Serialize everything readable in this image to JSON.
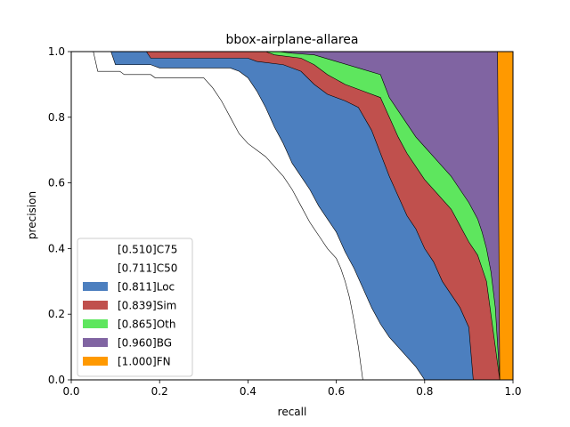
{
  "chart_data": {
    "type": "area",
    "title": "bbox-airplane-allarea",
    "xlabel": "recall",
    "ylabel": "precision",
    "xlim": [
      0,
      1
    ],
    "ylim": [
      0,
      1
    ],
    "xticks": [
      "0.0",
      "0.2",
      "0.4",
      "0.6",
      "0.8",
      "1.0"
    ],
    "yticks": [
      "0.0",
      "0.2",
      "0.4",
      "0.6",
      "0.8",
      "1.0"
    ],
    "grid": false,
    "legend_position": "lower-left",
    "series": [
      {
        "name": "[0.510]C75",
        "color": "#ffffff",
        "points": [
          [
            0.0,
            1.0
          ],
          [
            0.05,
            1.0
          ],
          [
            0.06,
            0.94
          ],
          [
            0.11,
            0.94
          ],
          [
            0.12,
            0.93
          ],
          [
            0.18,
            0.93
          ],
          [
            0.19,
            0.92
          ],
          [
            0.3,
            0.92
          ],
          [
            0.32,
            0.89
          ],
          [
            0.34,
            0.85
          ],
          [
            0.36,
            0.8
          ],
          [
            0.38,
            0.75
          ],
          [
            0.4,
            0.72
          ],
          [
            0.42,
            0.7
          ],
          [
            0.44,
            0.68
          ],
          [
            0.46,
            0.65
          ],
          [
            0.48,
            0.62
          ],
          [
            0.5,
            0.58
          ],
          [
            0.52,
            0.53
          ],
          [
            0.54,
            0.48
          ],
          [
            0.56,
            0.44
          ],
          [
            0.58,
            0.4
          ],
          [
            0.6,
            0.37
          ],
          [
            0.61,
            0.34
          ],
          [
            0.62,
            0.3
          ],
          [
            0.63,
            0.25
          ],
          [
            0.64,
            0.18
          ],
          [
            0.65,
            0.1
          ],
          [
            0.66,
            0.0
          ]
        ]
      },
      {
        "name": "[0.711]C50",
        "color": "#ffffff",
        "points": [
          [
            0.0,
            1.0
          ],
          [
            0.09,
            1.0
          ],
          [
            0.1,
            0.96
          ],
          [
            0.18,
            0.96
          ],
          [
            0.2,
            0.95
          ],
          [
            0.36,
            0.95
          ],
          [
            0.38,
            0.94
          ],
          [
            0.4,
            0.92
          ],
          [
            0.42,
            0.88
          ],
          [
            0.44,
            0.83
          ],
          [
            0.46,
            0.77
          ],
          [
            0.48,
            0.72
          ],
          [
            0.5,
            0.66
          ],
          [
            0.52,
            0.62
          ],
          [
            0.54,
            0.58
          ],
          [
            0.56,
            0.53
          ],
          [
            0.58,
            0.49
          ],
          [
            0.6,
            0.45
          ],
          [
            0.62,
            0.39
          ],
          [
            0.64,
            0.34
          ],
          [
            0.66,
            0.28
          ],
          [
            0.68,
            0.22
          ],
          [
            0.7,
            0.17
          ],
          [
            0.72,
            0.13
          ],
          [
            0.74,
            0.1
          ],
          [
            0.76,
            0.07
          ],
          [
            0.78,
            0.04
          ],
          [
            0.8,
            0.0
          ]
        ]
      },
      {
        "name": "[0.811]Loc",
        "color": "#4c7fbf",
        "points": [
          [
            0.0,
            1.0
          ],
          [
            0.17,
            1.0
          ],
          [
            0.18,
            0.98
          ],
          [
            0.4,
            0.98
          ],
          [
            0.42,
            0.97
          ],
          [
            0.48,
            0.96
          ],
          [
            0.52,
            0.94
          ],
          [
            0.55,
            0.9
          ],
          [
            0.58,
            0.87
          ],
          [
            0.62,
            0.85
          ],
          [
            0.65,
            0.83
          ],
          [
            0.68,
            0.76
          ],
          [
            0.7,
            0.69
          ],
          [
            0.72,
            0.62
          ],
          [
            0.74,
            0.56
          ],
          [
            0.76,
            0.5
          ],
          [
            0.78,
            0.46
          ],
          [
            0.8,
            0.4
          ],
          [
            0.82,
            0.36
          ],
          [
            0.84,
            0.3
          ],
          [
            0.86,
            0.26
          ],
          [
            0.88,
            0.22
          ],
          [
            0.9,
            0.16
          ],
          [
            0.91,
            0.0
          ]
        ]
      },
      {
        "name": "[0.839]Sim",
        "color": "#c0504d",
        "points": [
          [
            0.0,
            1.0
          ],
          [
            0.44,
            1.0
          ],
          [
            0.46,
            0.99
          ],
          [
            0.52,
            0.98
          ],
          [
            0.55,
            0.96
          ],
          [
            0.58,
            0.93
          ],
          [
            0.62,
            0.9
          ],
          [
            0.66,
            0.88
          ],
          [
            0.7,
            0.86
          ],
          [
            0.72,
            0.8
          ],
          [
            0.74,
            0.74
          ],
          [
            0.76,
            0.69
          ],
          [
            0.78,
            0.65
          ],
          [
            0.8,
            0.61
          ],
          [
            0.82,
            0.58
          ],
          [
            0.84,
            0.55
          ],
          [
            0.86,
            0.52
          ],
          [
            0.88,
            0.47
          ],
          [
            0.9,
            0.42
          ],
          [
            0.92,
            0.38
          ],
          [
            0.93,
            0.34
          ],
          [
            0.94,
            0.3
          ],
          [
            0.95,
            0.2
          ],
          [
            0.96,
            0.1
          ],
          [
            0.97,
            0.0
          ]
        ]
      },
      {
        "name": "[0.865]Oth",
        "color": "#5ee65e",
        "points": [
          [
            0.0,
            1.0
          ],
          [
            0.47,
            1.0
          ],
          [
            0.5,
            0.995
          ],
          [
            0.55,
            0.99
          ],
          [
            0.6,
            0.97
          ],
          [
            0.65,
            0.95
          ],
          [
            0.7,
            0.93
          ],
          [
            0.72,
            0.86
          ],
          [
            0.74,
            0.82
          ],
          [
            0.76,
            0.78
          ],
          [
            0.78,
            0.74
          ],
          [
            0.8,
            0.71
          ],
          [
            0.82,
            0.68
          ],
          [
            0.84,
            0.65
          ],
          [
            0.86,
            0.62
          ],
          [
            0.88,
            0.58
          ],
          [
            0.9,
            0.54
          ],
          [
            0.92,
            0.49
          ],
          [
            0.93,
            0.45
          ],
          [
            0.94,
            0.4
          ],
          [
            0.95,
            0.33
          ],
          [
            0.96,
            0.22
          ],
          [
            0.97,
            0.0
          ]
        ]
      },
      {
        "name": "[0.960]BG",
        "color": "#8064a2",
        "points": [
          [
            0.0,
            1.0
          ],
          [
            0.965,
            1.0
          ],
          [
            0.97,
            0.0
          ]
        ]
      },
      {
        "name": "[1.000]FN",
        "color": "#ff9900",
        "points": [
          [
            0.0,
            1.0
          ],
          [
            1.0,
            1.0
          ],
          [
            1.0,
            0.0
          ]
        ]
      }
    ]
  }
}
